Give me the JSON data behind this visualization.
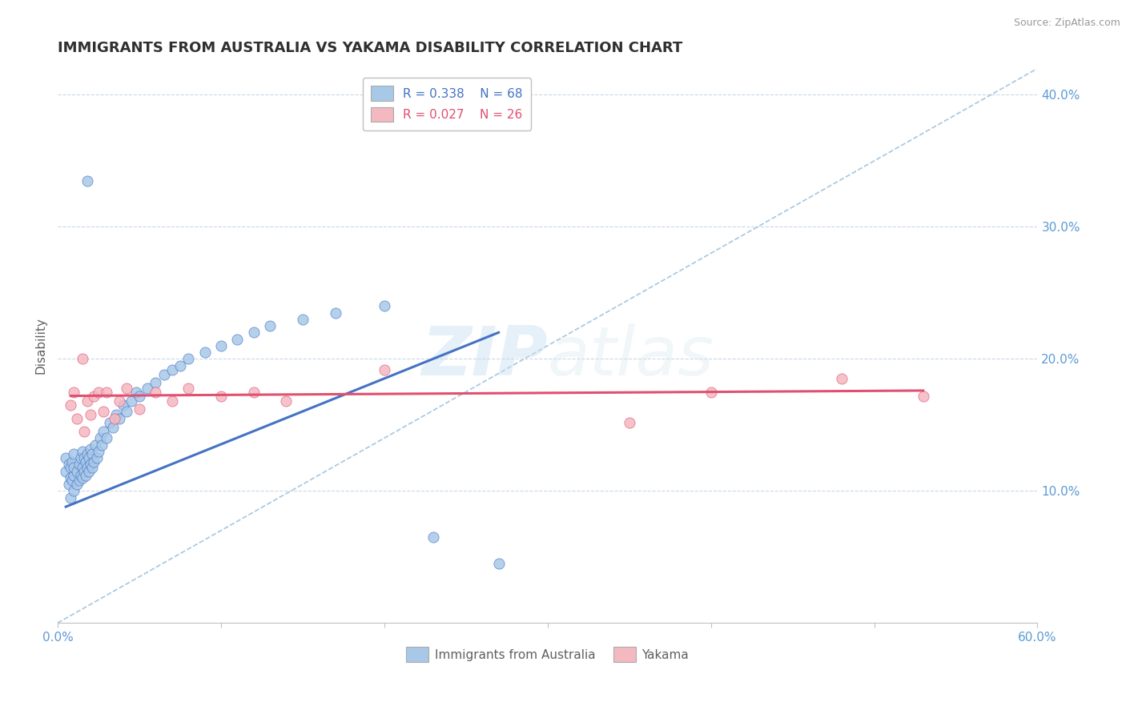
{
  "title": "IMMIGRANTS FROM AUSTRALIA VS YAKAMA DISABILITY CORRELATION CHART",
  "source": "Source: ZipAtlas.com",
  "watermark": "ZIPatlas",
  "ylabel": "Disability",
  "xlim": [
    0.0,
    0.6
  ],
  "ylim": [
    0.0,
    0.42
  ],
  "yticks_right": [
    0.1,
    0.2,
    0.3,
    0.4
  ],
  "ytick_right_labels": [
    "10.0%",
    "20.0%",
    "30.0%",
    "40.0%"
  ],
  "blue_color": "#a8c8e8",
  "pink_color": "#f4b8c0",
  "blue_line_color": "#4472c4",
  "pink_line_color": "#e05070",
  "grid_color": "#c8d8e8",
  "background_color": "#ffffff",
  "right_label_color": "#5b9bd5",
  "title_color": "#303030",
  "legend_R1": "R = 0.338",
  "legend_N1": "N = 68",
  "legend_R2": "R = 0.027",
  "legend_N2": "N = 26",
  "blue_scatter_x": [
    0.005,
    0.005,
    0.007,
    0.007,
    0.008,
    0.008,
    0.008,
    0.009,
    0.009,
    0.01,
    0.01,
    0.01,
    0.01,
    0.012,
    0.012,
    0.013,
    0.013,
    0.014,
    0.014,
    0.015,
    0.015,
    0.015,
    0.016,
    0.016,
    0.017,
    0.017,
    0.018,
    0.018,
    0.018,
    0.019,
    0.019,
    0.02,
    0.02,
    0.021,
    0.021,
    0.022,
    0.023,
    0.024,
    0.025,
    0.026,
    0.027,
    0.028,
    0.03,
    0.032,
    0.034,
    0.036,
    0.038,
    0.04,
    0.042,
    0.045,
    0.048,
    0.05,
    0.055,
    0.06,
    0.065,
    0.07,
    0.075,
    0.08,
    0.09,
    0.1,
    0.11,
    0.12,
    0.13,
    0.15,
    0.17,
    0.2,
    0.23,
    0.27
  ],
  "blue_scatter_y": [
    0.115,
    0.125,
    0.105,
    0.12,
    0.095,
    0.11,
    0.118,
    0.108,
    0.122,
    0.1,
    0.112,
    0.118,
    0.128,
    0.105,
    0.115,
    0.108,
    0.12,
    0.112,
    0.125,
    0.11,
    0.118,
    0.13,
    0.115,
    0.125,
    0.112,
    0.122,
    0.118,
    0.128,
    0.335,
    0.115,
    0.125,
    0.12,
    0.132,
    0.118,
    0.128,
    0.122,
    0.135,
    0.125,
    0.13,
    0.14,
    0.135,
    0.145,
    0.14,
    0.152,
    0.148,
    0.158,
    0.155,
    0.165,
    0.16,
    0.168,
    0.175,
    0.172,
    0.178,
    0.182,
    0.188,
    0.192,
    0.195,
    0.2,
    0.205,
    0.21,
    0.215,
    0.22,
    0.225,
    0.23,
    0.235,
    0.24,
    0.065,
    0.045
  ],
  "pink_scatter_x": [
    0.008,
    0.01,
    0.012,
    0.015,
    0.016,
    0.018,
    0.02,
    0.022,
    0.025,
    0.028,
    0.03,
    0.035,
    0.038,
    0.042,
    0.05,
    0.06,
    0.07,
    0.08,
    0.1,
    0.12,
    0.14,
    0.2,
    0.35,
    0.4,
    0.48,
    0.53
  ],
  "pink_scatter_y": [
    0.165,
    0.175,
    0.155,
    0.2,
    0.145,
    0.168,
    0.158,
    0.172,
    0.175,
    0.16,
    0.175,
    0.155,
    0.168,
    0.178,
    0.162,
    0.175,
    0.168,
    0.178,
    0.172,
    0.175,
    0.168,
    0.192,
    0.152,
    0.175,
    0.185,
    0.172
  ],
  "ref_line_x": [
    0.0,
    0.6
  ],
  "ref_line_y": [
    0.0,
    0.42
  ],
  "blue_trend_x": [
    0.005,
    0.27
  ],
  "blue_trend_y": [
    0.088,
    0.22
  ],
  "pink_trend_x": [
    0.008,
    0.53
  ],
  "pink_trend_y": [
    0.172,
    0.176
  ]
}
